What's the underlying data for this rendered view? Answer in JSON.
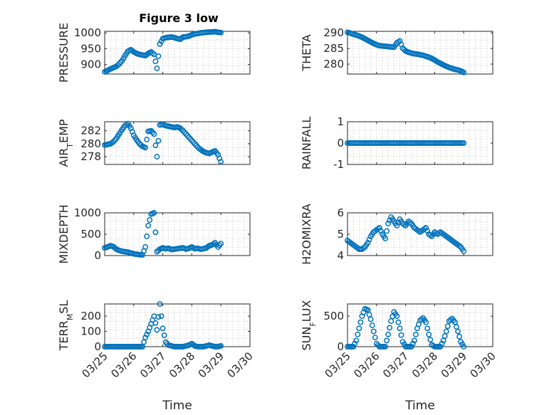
{
  "colors": {
    "marker": "#0072BD",
    "axis": "#262626",
    "grid": "#c8c8c8"
  },
  "chart_data": [
    {
      "type": "scatter",
      "title": "Figure 3 low",
      "ylabel": "PRESSURE",
      "xlabel": "",
      "ylim": [
        870,
        1005
      ],
      "yticks": [
        900,
        950,
        1000
      ],
      "ytick_labels": [
        "900",
        "950",
        "1000"
      ],
      "xlim": [
        0,
        5
      ],
      "xticks": [
        0,
        1,
        2,
        3,
        4,
        5
      ],
      "grid": true,
      "x": [
        0.0,
        0.1,
        0.2,
        0.3,
        0.4,
        0.5,
        0.6,
        0.7,
        0.8,
        0.9,
        1.0,
        1.1,
        1.2,
        1.3,
        1.4,
        1.5,
        1.6,
        1.7,
        1.8,
        1.9,
        2.0,
        2.1,
        2.2,
        2.3,
        2.4,
        2.5,
        2.6,
        2.7,
        2.8,
        2.9,
        3.0,
        3.1,
        3.2,
        3.3,
        3.4,
        3.5,
        3.6,
        3.7,
        3.8,
        3.9,
        4.0
      ],
      "y": [
        877,
        881,
        886,
        890,
        894,
        902,
        912,
        928,
        942,
        947,
        940,
        935,
        932,
        930,
        928,
        935,
        940,
        932,
        888,
        965,
        982,
        985,
        986,
        987,
        985,
        982,
        980,
        987,
        988,
        990,
        994,
        997,
        998,
        1000,
        1001,
        1002,
        1003,
        1003,
        1004,
        1002,
        1001
      ]
    },
    {
      "type": "scatter",
      "ylabel": "THETA",
      "xlabel": "",
      "ylim": [
        276.8,
        290.5
      ],
      "yticks": [
        280,
        285,
        290
      ],
      "ytick_labels": [
        "280",
        "285",
        "290"
      ],
      "xlim": [
        0,
        5
      ],
      "xticks": [
        0,
        1,
        2,
        3,
        4,
        5
      ],
      "grid": true,
      "x": [
        0.0,
        0.1,
        0.2,
        0.3,
        0.4,
        0.5,
        0.6,
        0.7,
        0.8,
        0.9,
        1.0,
        1.1,
        1.2,
        1.3,
        1.4,
        1.5,
        1.6,
        1.7,
        1.8,
        1.9,
        2.0,
        2.1,
        2.2,
        2.3,
        2.4,
        2.5,
        2.6,
        2.7,
        2.8,
        2.9,
        3.0,
        3.1,
        3.2,
        3.3,
        3.4,
        3.5,
        3.6,
        3.7,
        3.8,
        3.9,
        4.0
      ],
      "y": [
        290.2,
        289.9,
        289.6,
        289.3,
        289.0,
        288.6,
        288.1,
        287.6,
        287.1,
        286.6,
        286.2,
        285.9,
        285.8,
        285.7,
        285.6,
        285.5,
        285.4,
        286.8,
        287.4,
        285.1,
        284.2,
        283.8,
        283.5,
        283.3,
        283.2,
        283.0,
        282.8,
        282.5,
        282.2,
        281.8,
        281.3,
        280.7,
        280.2,
        279.7,
        279.3,
        278.9,
        278.6,
        278.3,
        278.1,
        277.8,
        277.3
      ]
    },
    {
      "type": "scatter",
      "ylabel": "AIR_TEMP",
      "xlabel": "",
      "ylim": [
        276.8,
        283.4
      ],
      "yticks": [
        278,
        280,
        282
      ],
      "ytick_labels": [
        "278",
        "280",
        "282"
      ],
      "xlim": [
        0,
        5
      ],
      "xticks": [
        0,
        1,
        2,
        3,
        4,
        5
      ],
      "grid": true,
      "x": [
        0.0,
        0.1,
        0.2,
        0.3,
        0.4,
        0.5,
        0.6,
        0.7,
        0.8,
        0.9,
        1.0,
        1.1,
        1.2,
        1.3,
        1.4,
        1.5,
        1.6,
        1.7,
        1.8,
        1.9,
        2.0,
        2.1,
        2.2,
        2.3,
        2.4,
        2.5,
        2.6,
        2.7,
        2.8,
        2.9,
        3.0,
        3.1,
        3.2,
        3.3,
        3.4,
        3.5,
        3.6,
        3.7,
        3.8,
        3.9,
        4.0
      ],
      "y": [
        279.8,
        279.9,
        280.0,
        280.3,
        280.8,
        281.5,
        282.2,
        282.8,
        283.1,
        282.4,
        281.3,
        280.6,
        280.0,
        279.6,
        279.4,
        281.9,
        282.0,
        281.5,
        278.0,
        282.9,
        283.0,
        282.8,
        282.7,
        282.6,
        282.5,
        282.6,
        282.4,
        282.0,
        281.5,
        281.0,
        280.5,
        280.0,
        279.5,
        279.1,
        278.8,
        278.6,
        278.5,
        278.7,
        278.9,
        278.3,
        277.2
      ]
    },
    {
      "type": "scatter",
      "ylabel": "RAINFALL",
      "xlabel": "",
      "ylim": [
        -1,
        1
      ],
      "yticks": [
        -1,
        0,
        1
      ],
      "ytick_labels": [
        "-1",
        "0",
        "1"
      ],
      "xlim": [
        0,
        5
      ],
      "xticks": [
        0,
        1,
        2,
        3,
        4,
        5
      ],
      "grid": true,
      "x": [
        0.0,
        0.1,
        0.2,
        0.3,
        0.4,
        0.5,
        0.6,
        0.7,
        0.8,
        0.9,
        1.0,
        1.1,
        1.2,
        1.3,
        1.4,
        1.5,
        1.6,
        1.7,
        1.8,
        1.9,
        2.0,
        2.1,
        2.2,
        2.3,
        2.4,
        2.5,
        2.6,
        2.7,
        2.8,
        2.9,
        3.0,
        3.1,
        3.2,
        3.3,
        3.4,
        3.5,
        3.6,
        3.7,
        3.8,
        3.9,
        4.0
      ],
      "y": [
        0,
        0,
        0,
        0,
        0,
        0,
        0,
        0,
        0,
        0,
        0,
        0,
        0,
        0,
        0,
        0,
        0,
        0,
        0,
        0,
        0,
        0,
        0,
        0,
        0,
        0,
        0,
        0,
        0,
        0,
        0,
        0,
        0,
        0,
        0,
        0,
        0,
        0,
        0,
        0,
        0
      ]
    },
    {
      "type": "scatter",
      "ylabel": "MIXDEPTH",
      "xlabel": "",
      "ylim": [
        0,
        1000
      ],
      "yticks": [
        0,
        500,
        1000
      ],
      "ytick_labels": [
        "0",
        "500",
        "1000"
      ],
      "xlim": [
        0,
        5
      ],
      "xticks": [
        0,
        1,
        2,
        3,
        4,
        5
      ],
      "grid": true,
      "x": [
        0.0,
        0.1,
        0.2,
        0.3,
        0.4,
        0.5,
        0.6,
        0.7,
        0.8,
        0.9,
        1.0,
        1.1,
        1.2,
        1.3,
        1.4,
        1.5,
        1.6,
        1.7,
        1.8,
        1.9,
        2.0,
        2.1,
        2.2,
        2.3,
        2.4,
        2.5,
        2.6,
        2.7,
        2.8,
        2.9,
        3.0,
        3.1,
        3.2,
        3.3,
        3.4,
        3.5,
        3.6,
        3.7,
        3.8,
        3.9,
        4.0
      ],
      "y": [
        180,
        200,
        230,
        210,
        150,
        120,
        100,
        90,
        80,
        60,
        40,
        30,
        20,
        15,
        200,
        700,
        970,
        1000,
        90,
        150,
        180,
        160,
        170,
        140,
        150,
        160,
        170,
        180,
        150,
        170,
        200,
        160,
        170,
        150,
        160,
        180,
        230,
        250,
        300,
        200,
        280
      ]
    },
    {
      "type": "scatter",
      "ylabel": "H2OMIXRA",
      "xlabel": "",
      "ylim": [
        4,
        6
      ],
      "yticks": [
        4,
        5,
        6
      ],
      "ytick_labels": [
        "4",
        "5",
        "6"
      ],
      "xlim": [
        0,
        5
      ],
      "xticks": [
        0,
        1,
        2,
        3,
        4,
        5
      ],
      "grid": true,
      "x": [
        0.0,
        0.1,
        0.2,
        0.3,
        0.4,
        0.5,
        0.6,
        0.7,
        0.8,
        0.9,
        1.0,
        1.1,
        1.2,
        1.3,
        1.4,
        1.5,
        1.6,
        1.7,
        1.8,
        1.9,
        2.0,
        2.1,
        2.2,
        2.3,
        2.4,
        2.5,
        2.6,
        2.7,
        2.8,
        2.9,
        3.0,
        3.1,
        3.2,
        3.3,
        3.4,
        3.5,
        3.6,
        3.7,
        3.8,
        3.9,
        4.0
      ],
      "y": [
        4.7,
        4.6,
        4.5,
        4.4,
        4.3,
        4.3,
        4.4,
        4.6,
        4.9,
        5.1,
        5.2,
        5.3,
        5.0,
        4.8,
        5.5,
        5.8,
        5.6,
        5.4,
        5.7,
        5.5,
        5.4,
        5.6,
        5.5,
        5.3,
        5.2,
        5.1,
        5.2,
        5.3,
        5.0,
        4.9,
        5.1,
        5.0,
        5.1,
        5.0,
        4.9,
        4.8,
        4.7,
        4.6,
        4.5,
        4.4,
        4.2
      ]
    },
    {
      "type": "scatter",
      "ylabel": "TERR_MSL",
      "xlabel": "Time",
      "ylim": [
        0,
        280
      ],
      "yticks": [
        0,
        100,
        200
      ],
      "ytick_labels": [
        "0",
        "100",
        "200"
      ],
      "xlim": [
        0,
        5
      ],
      "xticks": [
        0,
        1,
        2,
        3,
        4,
        5
      ],
      "xtick_labels": [
        "03/25",
        "03/26",
        "03/27",
        "03/28",
        "03/29",
        "03/30"
      ],
      "grid": true,
      "x": [
        0.0,
        0.1,
        0.2,
        0.3,
        0.4,
        0.5,
        0.6,
        0.7,
        0.8,
        0.9,
        1.0,
        1.1,
        1.2,
        1.3,
        1.4,
        1.5,
        1.6,
        1.7,
        1.8,
        1.9,
        2.0,
        2.1,
        2.2,
        2.3,
        2.4,
        2.5,
        2.6,
        2.7,
        2.8,
        2.9,
        3.0,
        3.1,
        3.2,
        3.3,
        3.4,
        3.5,
        3.6,
        3.7,
        3.8,
        3.9,
        4.0
      ],
      "y": [
        0,
        0,
        0,
        0,
        0,
        0,
        0,
        0,
        0,
        0,
        0,
        0,
        0,
        0,
        60,
        100,
        150,
        200,
        110,
        280,
        120,
        30,
        10,
        5,
        0,
        0,
        0,
        0,
        5,
        10,
        20,
        5,
        0,
        0,
        0,
        5,
        10,
        5,
        0,
        0,
        5
      ]
    },
    {
      "type": "scatter",
      "ylabel": "SUN_FLUX",
      "xlabel": "Time",
      "ylim": [
        0,
        700
      ],
      "yticks": [
        0,
        500
      ],
      "ytick_labels": [
        "0",
        "500"
      ],
      "xlim": [
        0,
        5
      ],
      "xticks": [
        0,
        1,
        2,
        3,
        4,
        5
      ],
      "xtick_labels": [
        "03/25",
        "03/26",
        "03/27",
        "03/28",
        "03/29",
        "03/30"
      ],
      "grid": true,
      "x": [
        0.0,
        0.1,
        0.2,
        0.3,
        0.4,
        0.5,
        0.6,
        0.7,
        0.8,
        0.9,
        1.0,
        1.1,
        1.2,
        1.3,
        1.4,
        1.5,
        1.6,
        1.7,
        1.8,
        1.9,
        2.0,
        2.1,
        2.2,
        2.3,
        2.4,
        2.5,
        2.6,
        2.7,
        2.8,
        2.9,
        3.0,
        3.1,
        3.2,
        3.3,
        3.4,
        3.5,
        3.6,
        3.7,
        3.8,
        3.9,
        4.0
      ],
      "y": [
        0,
        0,
        0,
        100,
        300,
        500,
        620,
        600,
        450,
        250,
        50,
        0,
        0,
        0,
        200,
        420,
        570,
        500,
        300,
        80,
        0,
        0,
        0,
        100,
        300,
        430,
        470,
        400,
        200,
        30,
        0,
        0,
        0,
        100,
        250,
        420,
        460,
        400,
        250,
        80,
        0
      ]
    }
  ]
}
